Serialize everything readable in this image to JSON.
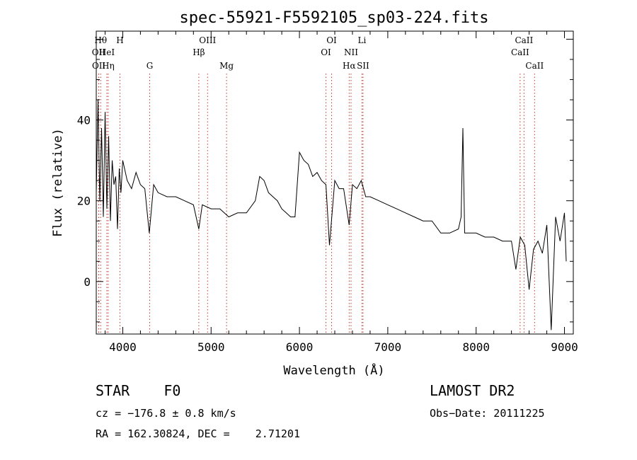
{
  "chart_data": {
    "type": "line",
    "title": "spec-55921-F5592105_sp03-224.fits",
    "xlabel": "Wavelength (Å)",
    "ylabel": "Flux (relative)",
    "xlim": [
      3700,
      9100
    ],
    "ylim": [
      -13,
      62
    ],
    "x_ticks": [
      4000,
      5000,
      6000,
      7000,
      8000,
      9000
    ],
    "y_ticks": [
      0,
      20,
      40
    ],
    "grid": false,
    "series": [
      {
        "x": [
          3700,
          3720,
          3740,
          3760,
          3780,
          3800,
          3820,
          3840,
          3860,
          3880,
          3900,
          3920,
          3940,
          3960,
          3980,
          4000,
          4050,
          4100,
          4150,
          4200,
          4250,
          4300,
          4350,
          4400,
          4500,
          4600,
          4700,
          4800,
          4861,
          4900,
          5000,
          5100,
          5200,
          5300,
          5400,
          5500,
          5550,
          5600,
          5650,
          5700,
          5750,
          5800,
          5850,
          5900,
          5950,
          6000,
          6050,
          6100,
          6150,
          6200,
          6250,
          6300,
          6340,
          6400,
          6450,
          6500,
          6563,
          6600,
          6650,
          6700,
          6750,
          6800,
          6900,
          7000,
          7100,
          7200,
          7300,
          7400,
          7500,
          7600,
          7700,
          7800,
          7830,
          7850,
          7870,
          7900,
          8000,
          8100,
          8200,
          8300,
          8400,
          8450,
          8500,
          8550,
          8600,
          8650,
          8700,
          8750,
          8800,
          8850,
          8900,
          8950,
          9000,
          9020
        ],
        "y": [
          22,
          45,
          20,
          38,
          16,
          42,
          18,
          36,
          15,
          30,
          24,
          26,
          13,
          28,
          22,
          30,
          25,
          23,
          27,
          24,
          23,
          12,
          24,
          22,
          21,
          21,
          20,
          19,
          13,
          19,
          18,
          18,
          16,
          17,
          17,
          20,
          26,
          25,
          22,
          21,
          20,
          18,
          17,
          16,
          16,
          32,
          30,
          29,
          26,
          27,
          25,
          24,
          9,
          25,
          23,
          23,
          14,
          24,
          23,
          25,
          21,
          21,
          20,
          19,
          18,
          17,
          16,
          15,
          15,
          12,
          12,
          13,
          16,
          38,
          12,
          12,
          12,
          11,
          11,
          10,
          10,
          3,
          11,
          9,
          -2,
          8,
          10,
          7,
          14,
          -12,
          16,
          10,
          17,
          5
        ]
      }
    ],
    "line_markers": [
      {
        "name": "OII",
        "x": 3727,
        "row": 1
      },
      {
        "name": "OII",
        "x": 3729,
        "row": 2
      },
      {
        "name": "Hθ",
        "x": 3750,
        "row": 0
      },
      {
        "name": "HeI",
        "x": 3820,
        "row": 1
      },
      {
        "name": "Hη",
        "x": 3835,
        "row": 2
      },
      {
        "name": "H",
        "x": 3968,
        "row": 0
      },
      {
        "name": "G",
        "x": 4305,
        "row": 2
      },
      {
        "name": "Hβ",
        "x": 4861,
        "row": 1
      },
      {
        "name": "OIII",
        "x": 4960,
        "row": 0
      },
      {
        "name": "Mg",
        "x": 5175,
        "row": 2
      },
      {
        "name": "OI",
        "x": 6300,
        "row": 1
      },
      {
        "name": "OI",
        "x": 6364,
        "row": 0
      },
      {
        "name": "NII",
        "x": 6584,
        "row": 1
      },
      {
        "name": "Hα",
        "x": 6563,
        "row": 2
      },
      {
        "name": "Li",
        "x": 6708,
        "row": 0
      },
      {
        "name": "SII",
        "x": 6720,
        "row": 2
      },
      {
        "name": "CaII",
        "x": 8498,
        "row": 1
      },
      {
        "name": "CaII",
        "x": 8542,
        "row": 0
      },
      {
        "name": "CaII",
        "x": 8662,
        "row": 2
      }
    ]
  },
  "footer": {
    "class_line": "STAR    F0",
    "survey": "LAMOST DR2",
    "cz": "cz = −176.8 ± 0.8 km/s",
    "obs_date": "Obs−Date: 20111225",
    "radec": "RA = 162.30824, DEC =    2.71201"
  }
}
